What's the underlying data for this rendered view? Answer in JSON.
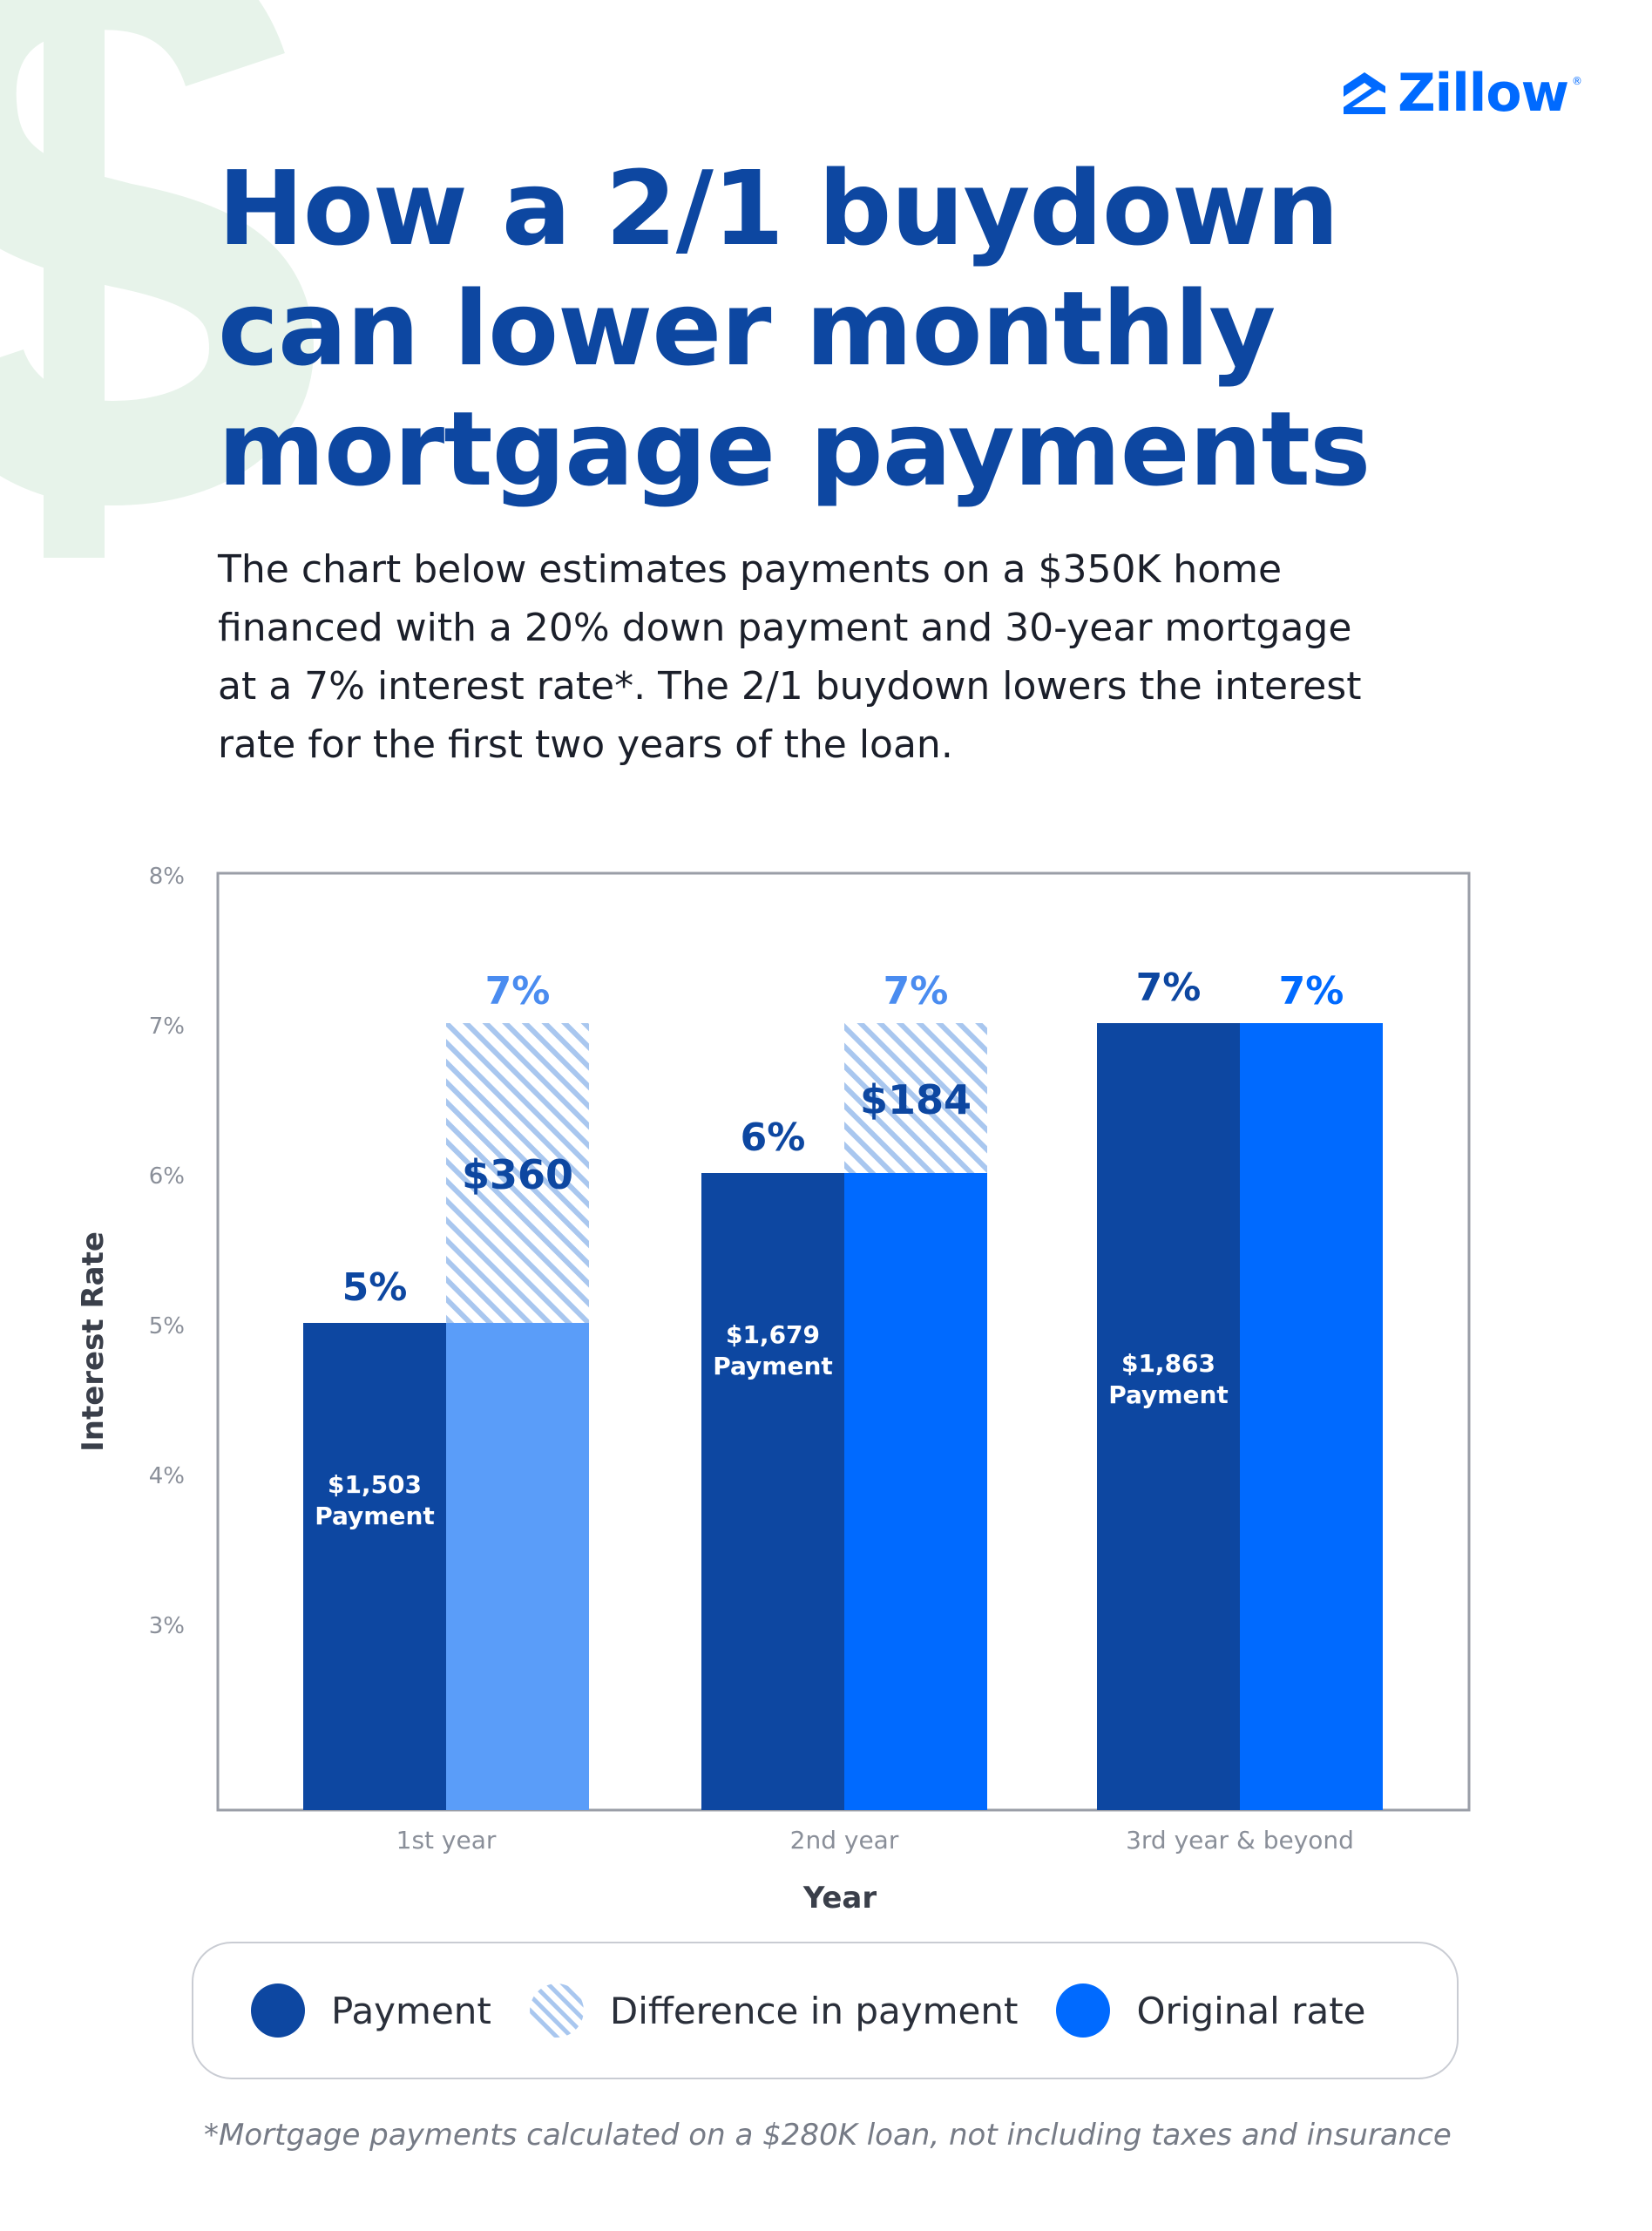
{
  "brand": {
    "name": "Zillow",
    "color": "#006aff"
  },
  "title_lines": [
    "How a 2/1 buydown",
    "can lower monthly",
    "mortgage payments"
  ],
  "description_lines": [
    "The chart below estimates payments on a $350K home",
    "financed with a 20% down payment and 30-year mortgage",
    "at a 7% interest rate*. The 2/1 buydown lowers the interest",
    "rate for the first two years of the loan."
  ],
  "chart_data": {
    "type": "bar",
    "xlabel": "Year",
    "ylabel": "Interest Rate",
    "ylim": [
      1.75,
      8
    ],
    "yticks": [
      "8%",
      "7%",
      "6%",
      "5%",
      "4%",
      "3%"
    ],
    "ytick_values": [
      8,
      7,
      6,
      5,
      4,
      3
    ],
    "categories": [
      "1st year",
      "2nd year",
      "3rd year & beyond"
    ],
    "series": [
      {
        "name": "Payment",
        "values": [
          5,
          6,
          7
        ],
        "rate_labels": [
          "5%",
          "6%",
          "7%"
        ],
        "payment_labels": [
          "$1,503",
          "$1,679",
          "$1,863"
        ],
        "payment_word": "Payment"
      },
      {
        "name": "Original rate",
        "values": [
          7,
          7,
          7
        ],
        "rate_labels": [
          "7%",
          "7%",
          "7%"
        ]
      }
    ],
    "difference": {
      "name": "Difference in payment",
      "labels": [
        "$360",
        "$184",
        ""
      ]
    },
    "grid": false,
    "legend_position": "bottom"
  },
  "colors": {
    "payment": "#0d47a1",
    "original_year1": "#5a9df9",
    "original": "#006aff",
    "hatch": "#a9c7ef",
    "title": "#0d47a1",
    "light_label": "#4a8cf0"
  },
  "legend": [
    {
      "label": "Payment",
      "kind": "solid-dark"
    },
    {
      "label": "Difference in payment",
      "kind": "hatch"
    },
    {
      "label": "Original rate",
      "kind": "solid-blue"
    }
  ],
  "footnote": "*Mortgage payments calculated on a $280K loan, not including taxes and insurance"
}
